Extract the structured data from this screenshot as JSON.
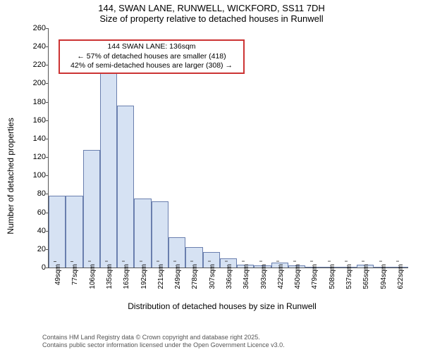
{
  "title_line1": "144, SWAN LANE, RUNWELL, WICKFORD, SS11 7DH",
  "title_line2": "Size of property relative to detached houses in Runwell",
  "ylabel": "Number of detached properties",
  "xlabel": "Distribution of detached houses by size in Runwell",
  "chart": {
    "type": "histogram",
    "background_color": "#ffffff",
    "bar_fill": "#d6e2f3",
    "bar_stroke": "#6a7fae",
    "ylim": [
      0,
      260
    ],
    "ytick_step": 20,
    "yticks": [
      0,
      20,
      40,
      60,
      80,
      100,
      120,
      140,
      160,
      180,
      200,
      220,
      240,
      260
    ],
    "xticks": [
      "49sqm",
      "77sqm",
      "106sqm",
      "135sqm",
      "163sqm",
      "192sqm",
      "221sqm",
      "249sqm",
      "278sqm",
      "307sqm",
      "336sqm",
      "364sqm",
      "393sqm",
      "422sqm",
      "450sqm",
      "479sqm",
      "508sqm",
      "537sqm",
      "565sqm",
      "594sqm",
      "622sqm"
    ],
    "values": [
      78,
      78,
      128,
      212,
      176,
      75,
      72,
      33,
      22,
      17,
      10,
      3,
      2,
      5,
      2,
      1,
      0,
      0,
      3,
      0,
      1
    ],
    "annotation": {
      "line1": "144 SWAN LANE: 136sqm",
      "line2": "← 57% of detached houses are smaller (418)",
      "line3": "42% of semi-detached houses are larger (308) →",
      "border_color": "#cc3333",
      "x_index_marker": 3
    },
    "marker_color": "#cc3333"
  },
  "footer_line1": "Contains HM Land Registry data © Crown copyright and database right 2025.",
  "footer_line2": "Contains public sector information licensed under the Open Government Licence v3.0."
}
